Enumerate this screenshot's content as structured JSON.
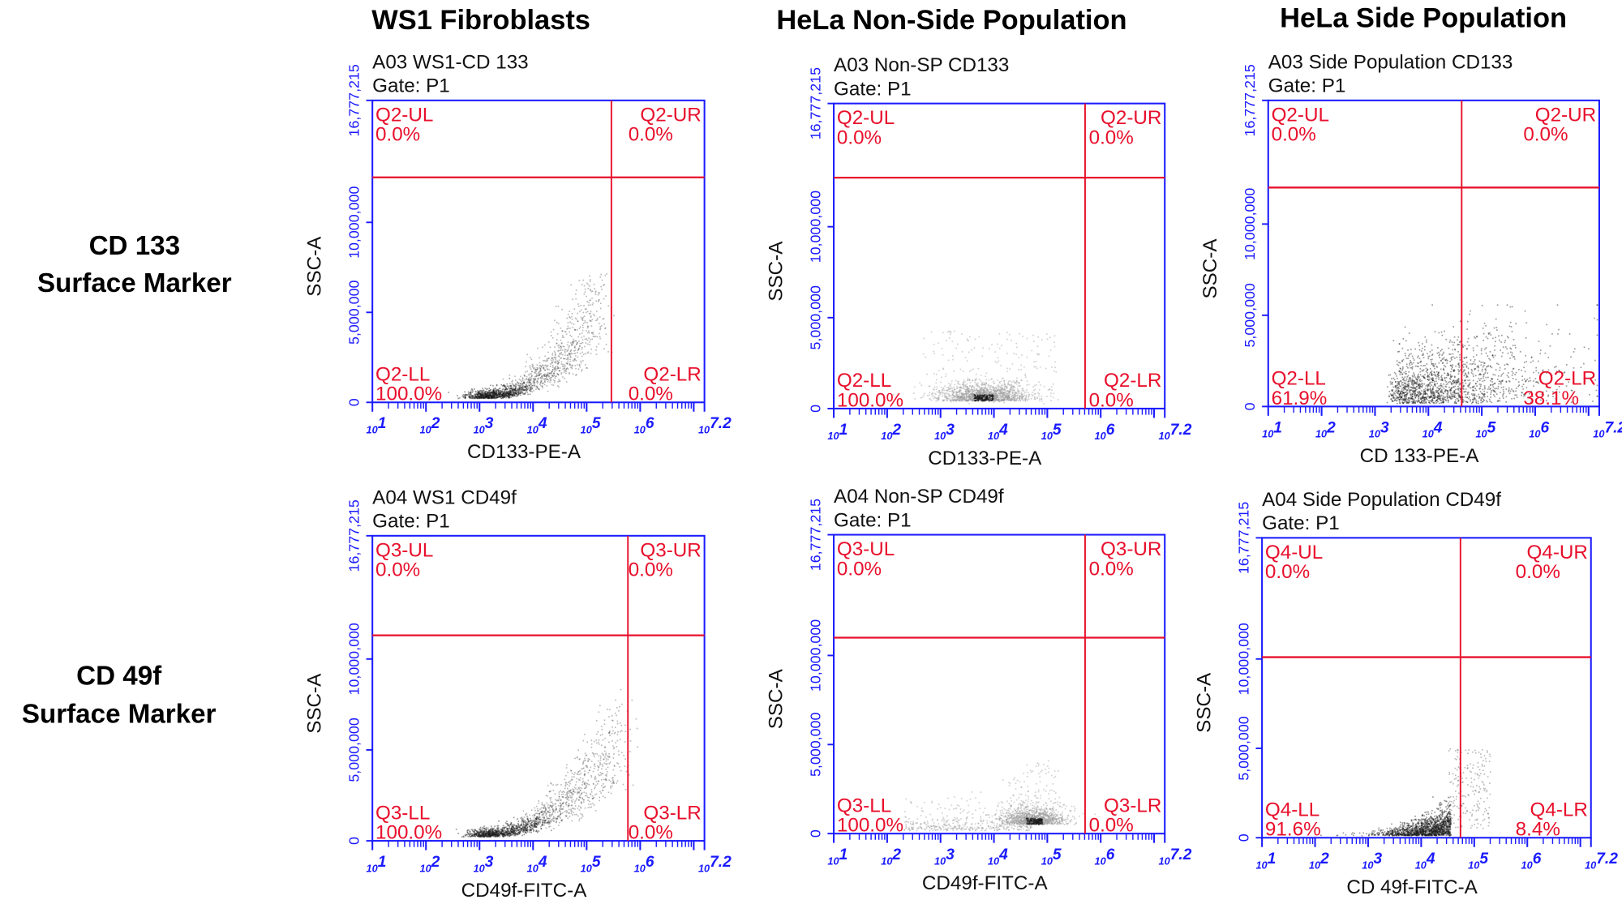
{
  "column_headers": [
    "WS1 Fibroblasts",
    "HeLa Non-Side Population",
    "HeLa Side Population"
  ],
  "row_headers": [
    {
      "line1": "CD 133",
      "line2": "Surface Marker"
    },
    {
      "line1": "CD 49f",
      "line2": "Surface Marker"
    }
  ],
  "colors": {
    "axis": "#1a1aff",
    "gate": "#e8102c",
    "events_dark": "#1a1a1a",
    "events_light": "#9a9a9a"
  },
  "chart_data": [
    {
      "type": "scatter",
      "title": "A03 WS1-CD 133",
      "gate_label": "Gate: P1",
      "xlabel": "CD133-PE-A",
      "ylabel": "SSC-A",
      "x_scale": "log",
      "xlim": [
        10,
        15848932
      ],
      "ylim": [
        0,
        16777215
      ],
      "x_ticks": [
        "1",
        "2",
        "3",
        "4",
        "5",
        "6",
        "7.2"
      ],
      "x_tick_base": "10",
      "y_ticks": [
        "0",
        "5,000,000",
        "10,000,000",
        "16,777,215"
      ],
      "gate": {
        "x": 290000,
        "y": 12500000
      },
      "quadrants": {
        "UL": {
          "name": "Q2-UL",
          "pct": "0.0%"
        },
        "UR": {
          "name": "Q2-UR",
          "pct": "0.0%"
        },
        "LL": {
          "name": "Q2-LL",
          "pct": "100.0%"
        },
        "LR": {
          "name": "Q2-LR",
          "pct": "0.0%"
        }
      }
    },
    {
      "type": "scatter",
      "title": "A03 Non-SP CD133",
      "gate_label": "Gate: P1",
      "xlabel": "CD133-PE-A",
      "ylabel": "SSC-A",
      "x_scale": "log",
      "xlim": [
        10,
        15848932
      ],
      "ylim": [
        0,
        16777215
      ],
      "x_ticks": [
        "1",
        "2",
        "3",
        "4",
        "5",
        "6",
        "7.2"
      ],
      "x_tick_base": "10",
      "y_ticks": [
        "0",
        "5,000,000",
        "10,000,000",
        "16,777,215"
      ],
      "gate": {
        "x": 510000,
        "y": 12700000
      },
      "quadrants": {
        "UL": {
          "name": "Q2-UL",
          "pct": "0.0%"
        },
        "UR": {
          "name": "Q2-UR",
          "pct": "0.0%"
        },
        "LL": {
          "name": "Q2-LL",
          "pct": "100.0%"
        },
        "LR": {
          "name": "Q2-LR",
          "pct": "0.0%"
        }
      }
    },
    {
      "type": "scatter",
      "title": "A03 Side Population CD133",
      "gate_label": "Gate: P1",
      "xlabel": "CD 133-PE-A",
      "ylabel": "SSC-A",
      "x_scale": "log",
      "xlim": [
        10,
        15848932
      ],
      "ylim": [
        0,
        16777215
      ],
      "x_ticks": [
        "1",
        "2",
        "3",
        "4",
        "5",
        "6",
        "7.2"
      ],
      "x_tick_base": "10",
      "y_ticks": [
        "0",
        "5,000,000",
        "10,000,000",
        "16,777,215"
      ],
      "gate": {
        "x": 42000,
        "y": 12000000
      },
      "quadrants": {
        "UL": {
          "name": "Q2-UL",
          "pct": "0.0%"
        },
        "UR": {
          "name": "Q2-UR",
          "pct": "0.0%"
        },
        "LL": {
          "name": "Q2-LL",
          "pct": "61.9%"
        },
        "LR": {
          "name": "Q2-LR",
          "pct": "38.1%"
        }
      }
    },
    {
      "type": "scatter",
      "title": "A04 WS1 CD49f",
      "gate_label": "Gate: P1",
      "xlabel": "CD49f-FITC-A",
      "ylabel": "SSC-A",
      "x_scale": "log",
      "xlim": [
        10,
        15848932
      ],
      "ylim": [
        0,
        16777215
      ],
      "x_ticks": [
        "1",
        "2",
        "3",
        "4",
        "5",
        "6",
        "7.2"
      ],
      "x_tick_base": "10",
      "y_ticks": [
        "0",
        "5,000,000",
        "10,000,000",
        "16,777,215"
      ],
      "gate": {
        "x": 590000,
        "y": 11300000
      },
      "quadrants": {
        "UL": {
          "name": "Q3-UL",
          "pct": "0.0%"
        },
        "UR": {
          "name": "Q3-UR",
          "pct": "0.0%"
        },
        "LL": {
          "name": "Q3-LL",
          "pct": "100.0%"
        },
        "LR": {
          "name": "Q3-LR",
          "pct": "0.0%"
        }
      }
    },
    {
      "type": "scatter",
      "title": "A04 Non-SP CD49f",
      "gate_label": "Gate: P1",
      "xlabel": "CD49f-FITC-A",
      "ylabel": "SSC-A",
      "x_scale": "log",
      "xlim": [
        10,
        15848932
      ],
      "ylim": [
        0,
        16777215
      ],
      "x_ticks": [
        "1",
        "2",
        "3",
        "4",
        "5",
        "6",
        "7.2"
      ],
      "x_tick_base": "10",
      "y_ticks": [
        "0",
        "5,000,000",
        "10,000,000",
        "16,777,215"
      ],
      "gate": {
        "x": 510000,
        "y": 11000000
      },
      "quadrants": {
        "UL": {
          "name": "Q3-UL",
          "pct": "0.0%"
        },
        "UR": {
          "name": "Q3-UR",
          "pct": "0.0%"
        },
        "LL": {
          "name": "Q3-LL",
          "pct": "100.0%"
        },
        "LR": {
          "name": "Q3-LR",
          "pct": "0.0%"
        }
      }
    },
    {
      "type": "scatter",
      "title": "A04 Side Population CD49f",
      "gate_label": "Gate: P1",
      "xlabel": "CD 49f-FITC-A",
      "ylabel": "SSC-A",
      "x_scale": "log",
      "xlim": [
        10,
        15848932
      ],
      "ylim": [
        0,
        16777215
      ],
      "x_ticks": [
        "1",
        "2",
        "3",
        "4",
        "5",
        "6",
        "7.2"
      ],
      "x_tick_base": "10",
      "y_ticks": [
        "0",
        "5,000,000",
        "10,000,000",
        "16,777,215"
      ],
      "gate": {
        "x": 55000,
        "y": 10100000
      },
      "quadrants": {
        "UL": {
          "name": "Q4-UL",
          "pct": "0.0%"
        },
        "UR": {
          "name": "Q4-UR",
          "pct": "0.0%"
        },
        "LL": {
          "name": "Q4-LL",
          "pct": "91.6%"
        },
        "LR": {
          "name": "Q4-LR",
          "pct": "8.4%"
        }
      }
    }
  ]
}
